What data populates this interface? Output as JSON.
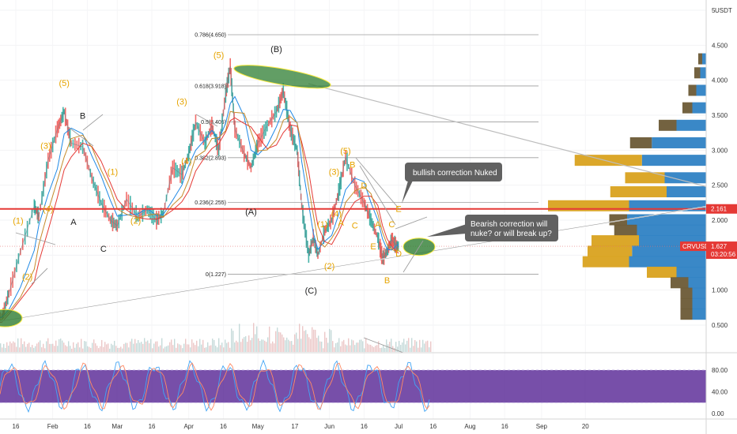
{
  "symbol": "CRVUSDT",
  "currency": "USDT",
  "chart_data": [
    {
      "type": "line",
      "name": "price",
      "ylim": [
        0.2,
        5.0
      ],
      "y_scale": "log",
      "ytick_labels": [
        "5",
        "4.500",
        "4.000",
        "3.500",
        "3.000",
        "2.500",
        "2.000",
        "1.500",
        "1.000",
        "0.500"
      ],
      "yticks": [
        5,
        4.5,
        4,
        3.5,
        3,
        2.5,
        2,
        1.5,
        1,
        0.5
      ],
      "xtick_labels": [
        "16",
        "Feb",
        "16",
        "Mar",
        "16",
        "Apr",
        "16",
        "May",
        "17",
        "Jun",
        "16",
        "Jul",
        "16",
        "Aug",
        "16",
        "Sep",
        "20"
      ],
      "xtick_dates": [
        "2021-01-16",
        "2021-02-01",
        "2021-02-16",
        "2021-03-01",
        "2021-03-16",
        "2021-04-01",
        "2021-04-16",
        "2021-05-01",
        "2021-05-17",
        "2021-06-01",
        "2021-06-16",
        "2021-07-01",
        "2021-07-16",
        "2021-08-01",
        "2021-08-16",
        "2021-09-01",
        "2021-09-20"
      ],
      "price_points": [
        [
          "2021-01-05",
          0.6
        ],
        [
          "2021-01-10",
          0.62
        ],
        [
          "2021-01-13",
          0.95
        ],
        [
          "2021-01-18",
          1.55
        ],
        [
          "2021-01-24",
          2.2
        ],
        [
          "2021-01-26",
          2.05
        ],
        [
          "2021-01-30",
          2.85
        ],
        [
          "2021-02-03",
          3.3
        ],
        [
          "2021-02-06",
          3.55
        ],
        [
          "2021-02-09",
          3.1
        ],
        [
          "2021-02-14",
          3.05
        ],
        [
          "2021-02-18",
          2.6
        ],
        [
          "2021-02-22",
          2.25
        ],
        [
          "2021-02-26",
          2.0
        ],
        [
          "2021-03-01",
          1.92
        ],
        [
          "2021-03-05",
          2.3
        ],
        [
          "2021-03-10",
          2.05
        ],
        [
          "2021-03-14",
          2.15
        ],
        [
          "2021-03-18",
          2.0
        ],
        [
          "2021-03-21",
          2.1
        ],
        [
          "2021-03-25",
          2.75
        ],
        [
          "2021-03-29",
          2.65
        ],
        [
          "2021-04-01",
          2.95
        ],
        [
          "2021-04-04",
          3.4
        ],
        [
          "2021-04-08",
          3.1
        ],
        [
          "2021-04-11",
          3.35
        ],
        [
          "2021-04-14",
          3.0
        ],
        [
          "2021-04-17",
          3.8
        ],
        [
          "2021-04-19",
          4.2
        ],
        [
          "2021-04-21",
          3.3
        ],
        [
          "2021-04-25",
          2.95
        ],
        [
          "2021-04-28",
          2.75
        ],
        [
          "2021-05-01",
          3.1
        ],
        [
          "2021-05-05",
          3.35
        ],
        [
          "2021-05-09",
          3.55
        ],
        [
          "2021-05-12",
          3.85
        ],
        [
          "2021-05-15",
          3.3
        ],
        [
          "2021-05-18",
          3.0
        ],
        [
          "2021-05-20",
          2.2
        ],
        [
          "2021-05-23",
          1.5
        ],
        [
          "2021-05-25",
          1.75
        ],
        [
          "2021-05-27",
          1.5
        ],
        [
          "2021-05-30",
          1.85
        ],
        [
          "2021-06-02",
          2.0
        ],
        [
          "2021-06-05",
          2.4
        ],
        [
          "2021-06-08",
          2.9
        ],
        [
          "2021-06-12",
          2.5
        ],
        [
          "2021-06-16",
          2.25
        ],
        [
          "2021-06-19",
          2.0
        ],
        [
          "2021-06-22",
          1.75
        ],
        [
          "2021-06-24",
          1.45
        ],
        [
          "2021-06-26",
          1.55
        ],
        [
          "2021-06-28",
          1.72
        ],
        [
          "2021-06-30",
          1.63
        ],
        [
          "2021-07-01",
          1.627
        ]
      ],
      "fib_levels": [
        {
          "label": "0.786(4.650)",
          "value": 4.65
        },
        {
          "label": "0.618(3.918)",
          "value": 3.918
        },
        {
          "label": "0.5(3.405)",
          "value": 3.405
        },
        {
          "label": "0.382(2.893)",
          "value": 2.893
        },
        {
          "label": "0.236(2.255)",
          "value": 2.255
        },
        {
          "label": "0(1.227)",
          "value": 1.227
        }
      ],
      "horizontal_line": {
        "value": 2.161,
        "label": "2.161",
        "color": "#e53935"
      },
      "last_price": {
        "value": 1.627,
        "label": "1.627",
        "countdown": "03:20:56",
        "color": "#e53935"
      },
      "wave_labels": [
        {
          "text": "(1)",
          "date": "2021-01-17",
          "price": 1.95,
          "color": "yellow"
        },
        {
          "text": "(2)",
          "date": "2021-01-21",
          "price": 1.15,
          "color": "yellow"
        },
        {
          "text": "(3)",
          "date": "2021-01-29",
          "price": 3.02,
          "color": "yellow"
        },
        {
          "text": "(4)",
          "date": "2021-01-30",
          "price": 2.12,
          "color": "yellow"
        },
        {
          "text": "(5)",
          "date": "2021-02-06",
          "price": 3.92,
          "color": "yellow"
        },
        {
          "text": "B",
          "date": "2021-02-14",
          "price": 3.45,
          "color": "dark"
        },
        {
          "text": "A",
          "date": "2021-02-10",
          "price": 1.93,
          "color": "dark"
        },
        {
          "text": "C",
          "date": "2021-02-23",
          "price": 1.55,
          "color": "dark"
        },
        {
          "text": "(1)",
          "date": "2021-02-27",
          "price": 2.65,
          "color": "yellow"
        },
        {
          "text": "(2)",
          "date": "2021-03-09",
          "price": 1.95,
          "color": "yellow"
        },
        {
          "text": "(3)",
          "date": "2021-03-29",
          "price": 3.65,
          "color": "yellow"
        },
        {
          "text": "(4)",
          "date": "2021-03-31",
          "price": 2.8,
          "color": "yellow"
        },
        {
          "text": "(5)",
          "date": "2021-04-14",
          "price": 4.32,
          "color": "yellow"
        },
        {
          "text": "(B)",
          "date": "2021-05-09",
          "price": 4.4,
          "color": "dark"
        },
        {
          "text": "(A)",
          "date": "2021-04-28",
          "price": 2.08,
          "color": "dark"
        },
        {
          "text": "(5)",
          "date": "2021-06-08",
          "price": 2.95,
          "color": "yellow"
        },
        {
          "text": "(3)",
          "date": "2021-06-03",
          "price": 2.65,
          "color": "yellow"
        },
        {
          "text": "(4)",
          "date": "2021-06-04",
          "price": 2.05,
          "color": "yellow"
        },
        {
          "text": "(1)",
          "date": "2021-05-29",
          "price": 1.9,
          "color": "yellow"
        },
        {
          "text": "(2)",
          "date": "2021-06-01",
          "price": 1.3,
          "color": "yellow"
        },
        {
          "text": "(C)",
          "date": "2021-05-24",
          "price": 0.95,
          "color": "dark"
        },
        {
          "text": "B",
          "date": "2021-06-11",
          "price": 2.75,
          "color": "yellow"
        },
        {
          "text": "D",
          "date": "2021-06-16",
          "price": 2.45,
          "color": "yellow"
        },
        {
          "text": "A",
          "date": "2021-06-06",
          "price": 1.92,
          "color": "yellow"
        },
        {
          "text": "C",
          "date": "2021-06-12",
          "price": 1.88,
          "color": "yellow"
        },
        {
          "text": "E",
          "date": "2021-06-20",
          "price": 1.58,
          "color": "yellow"
        },
        {
          "text": "E",
          "date": "2021-07-01",
          "price": 2.12,
          "color": "yellow"
        },
        {
          "text": "A",
          "date": "2021-06-22",
          "price": 1.9,
          "color": "yellow"
        },
        {
          "text": "C",
          "date": "2021-06-28",
          "price": 1.9,
          "color": "yellow"
        },
        {
          "text": "D",
          "date": "2021-07-01",
          "price": 1.48,
          "color": "yellow"
        },
        {
          "text": "B",
          "date": "2021-06-26",
          "price": 1.1,
          "color": "yellow"
        }
      ],
      "annotations": [
        {
          "text": "bullish correction Nuked"
        },
        {
          "text_lines": [
            "Bearish correction will",
            "nuke? or will break up?"
          ]
        }
      ],
      "volume_profile": [
        {
          "price": 4.3,
          "buy": 4,
          "sell": 4
        },
        {
          "price": 4.1,
          "buy": 6,
          "sell": 6
        },
        {
          "price": 3.85,
          "buy": 10,
          "sell": 8
        },
        {
          "price": 3.6,
          "buy": 14,
          "sell": 10
        },
        {
          "price": 3.35,
          "buy": 30,
          "sell": 18
        },
        {
          "price": 3.1,
          "buy": 55,
          "sell": 22
        },
        {
          "price": 2.85,
          "buy": 65,
          "sell": 68
        },
        {
          "price": 2.6,
          "buy": 42,
          "sell": 40
        },
        {
          "price": 2.4,
          "buy": 40,
          "sell": 57
        },
        {
          "price": 2.2,
          "buy": 78,
          "sell": 82
        },
        {
          "price": 2.0,
          "buy": 80,
          "sell": 18
        },
        {
          "price": 1.85,
          "buy": 70,
          "sell": 23
        },
        {
          "price": 1.7,
          "buy": 68,
          "sell": 48
        },
        {
          "price": 1.55,
          "buy": 75,
          "sell": 45
        },
        {
          "price": 1.4,
          "buy": 78,
          "sell": 47
        },
        {
          "price": 1.25,
          "buy": 30,
          "sell": 30
        },
        {
          "price": 1.1,
          "buy": 18,
          "sell": 18
        },
        {
          "price": 0.95,
          "buy": 14,
          "sell": 12
        },
        {
          "price": 0.8,
          "buy": 14,
          "sell": 12
        },
        {
          "price": 0.65,
          "buy": 14,
          "sell": 12
        }
      ]
    },
    {
      "type": "line",
      "name": "oscillator",
      "ylim": [
        0,
        100
      ],
      "ytick_labels": [
        "80.00",
        "40.00",
        "0.00"
      ],
      "yticks": [
        80,
        40,
        0
      ],
      "band": [
        20,
        80
      ]
    }
  ]
}
